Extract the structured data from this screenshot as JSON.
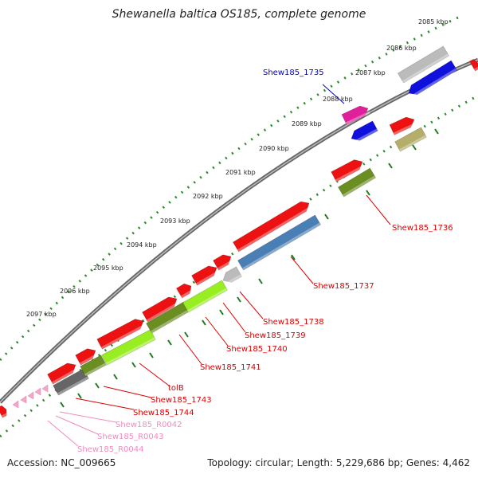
{
  "title": "Shewanella baltica OS185, complete genome",
  "footer": {
    "accession": "Accession: NC_009665",
    "summary": "Topology: circular; Length: 5,229,686 bp; Genes: 4,462"
  },
  "colors": {
    "backbone": "#777777",
    "tick": "#2a8a2a",
    "red": "#ee1111",
    "green": "#6b8e23",
    "lime": "#99ee22",
    "steel": "#4a7fb5",
    "gray": "#bbbbbb",
    "dark_gray": "#666666",
    "blue": "#1010dd",
    "magenta": "#e0209a",
    "khaki": "#b5ad6a",
    "pink": "#f4a6c8",
    "label_red": "#dd0000",
    "label_blue": "#0000cc",
    "label_pink": "#f08cbf"
  },
  "ticks": [
    {
      "label": "2085 kbp"
    },
    {
      "label": "2086 kbp"
    },
    {
      "label": "2087 kbp"
    },
    {
      "label": "2088 kbp"
    },
    {
      "label": "2089 kbp"
    },
    {
      "label": "2090 kbp"
    },
    {
      "label": "2091 kbp"
    },
    {
      "label": "2092 kbp"
    },
    {
      "label": "2093 kbp"
    },
    {
      "label": "2094 kbp"
    },
    {
      "label": "2095 kbp"
    },
    {
      "label": "2096 kbp"
    },
    {
      "label": "2097 kbp"
    }
  ],
  "labels": [
    {
      "text": "Shew185_1735",
      "color": "label_blue"
    },
    {
      "text": "Shew185_1736",
      "color": "label_red"
    },
    {
      "text": "Shew185_1737",
      "color": "label_red"
    },
    {
      "text": "Shew185_1738",
      "color": "label_red"
    },
    {
      "text": "Shew185_1739",
      "color": "label_red"
    },
    {
      "text": "Shew185_1740",
      "color": "label_red"
    },
    {
      "text": "Shew185_1741",
      "color": "label_red"
    },
    {
      "text": "tolB",
      "color": "label_red"
    },
    {
      "text": "Shew185_1743",
      "color": "label_red"
    },
    {
      "text": "Shew185_1744",
      "color": "label_red"
    },
    {
      "text": "Shew185_R0042",
      "color": "label_pink"
    },
    {
      "text": "Shew185_R0043",
      "color": "label_pink"
    },
    {
      "text": "Shew185_R0044",
      "color": "label_pink"
    }
  ]
}
